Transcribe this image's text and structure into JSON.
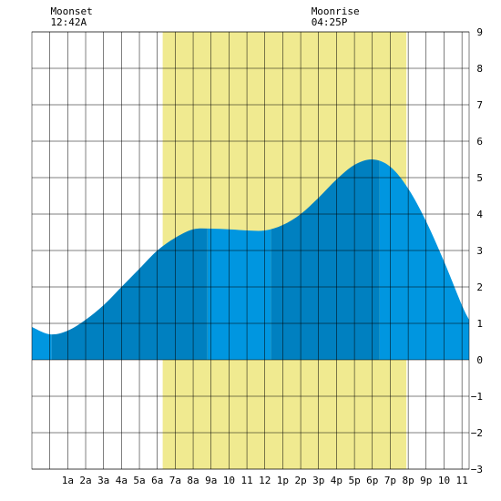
{
  "chart_data": {
    "type": "area",
    "moonset": {
      "label": "Moonset",
      "time": "12:42A",
      "hour": 0.7
    },
    "moonrise": {
      "label": "Moonrise",
      "time": "04:25P",
      "hour": 16.42
    },
    "daylight": {
      "start_hour": 6.3,
      "end_hour": 19.9
    },
    "x_range": [
      -1,
      23.4
    ],
    "x_tick_labels": [
      "1a",
      "2a",
      "3a",
      "4a",
      "5a",
      "6a",
      "7a",
      "8a",
      "9a",
      "10",
      "11",
      "12",
      "1p",
      "2p",
      "3p",
      "4p",
      "5p",
      "6p",
      "7p",
      "8p",
      "9p",
      "10",
      "11"
    ],
    "y_range": [
      -3,
      9
    ],
    "y_tick_labels": [
      "9",
      "8",
      "7",
      "6",
      "5",
      "4",
      "3",
      "2",
      "1",
      "0",
      "−1",
      "−2",
      "−3"
    ],
    "grid": true,
    "series": [
      {
        "x": [
          -1,
          0,
          1,
          2,
          3,
          4,
          5,
          6,
          7,
          8,
          9,
          10,
          11,
          12,
          13,
          14,
          15,
          16,
          17,
          18,
          19,
          20,
          21,
          22,
          23,
          23.4
        ],
        "y": [
          0.9,
          0.7,
          0.8,
          1.1,
          1.5,
          2.0,
          2.5,
          3.0,
          3.35,
          3.58,
          3.6,
          3.58,
          3.55,
          3.55,
          3.7,
          4.0,
          4.45,
          4.95,
          5.35,
          5.5,
          5.3,
          4.7,
          3.8,
          2.7,
          1.5,
          1.1
        ]
      }
    ],
    "tide_bands": [
      {
        "start_hour": -1,
        "end_hour": 0.1,
        "color": "#0096e0"
      },
      {
        "start_hour": 0.1,
        "end_hour": 8.8,
        "color": "#0080c0"
      },
      {
        "start_hour": 8.8,
        "end_hour": 12.35,
        "color": "#0096e0"
      },
      {
        "start_hour": 12.35,
        "end_hour": 18.4,
        "color": "#0080c0"
      },
      {
        "start_hour": 18.4,
        "end_hour": 23.4,
        "color": "#0096e0"
      }
    ],
    "colors": {
      "daylight": "#f0ea90",
      "grid": "#000000",
      "background": "#ffffff"
    }
  }
}
